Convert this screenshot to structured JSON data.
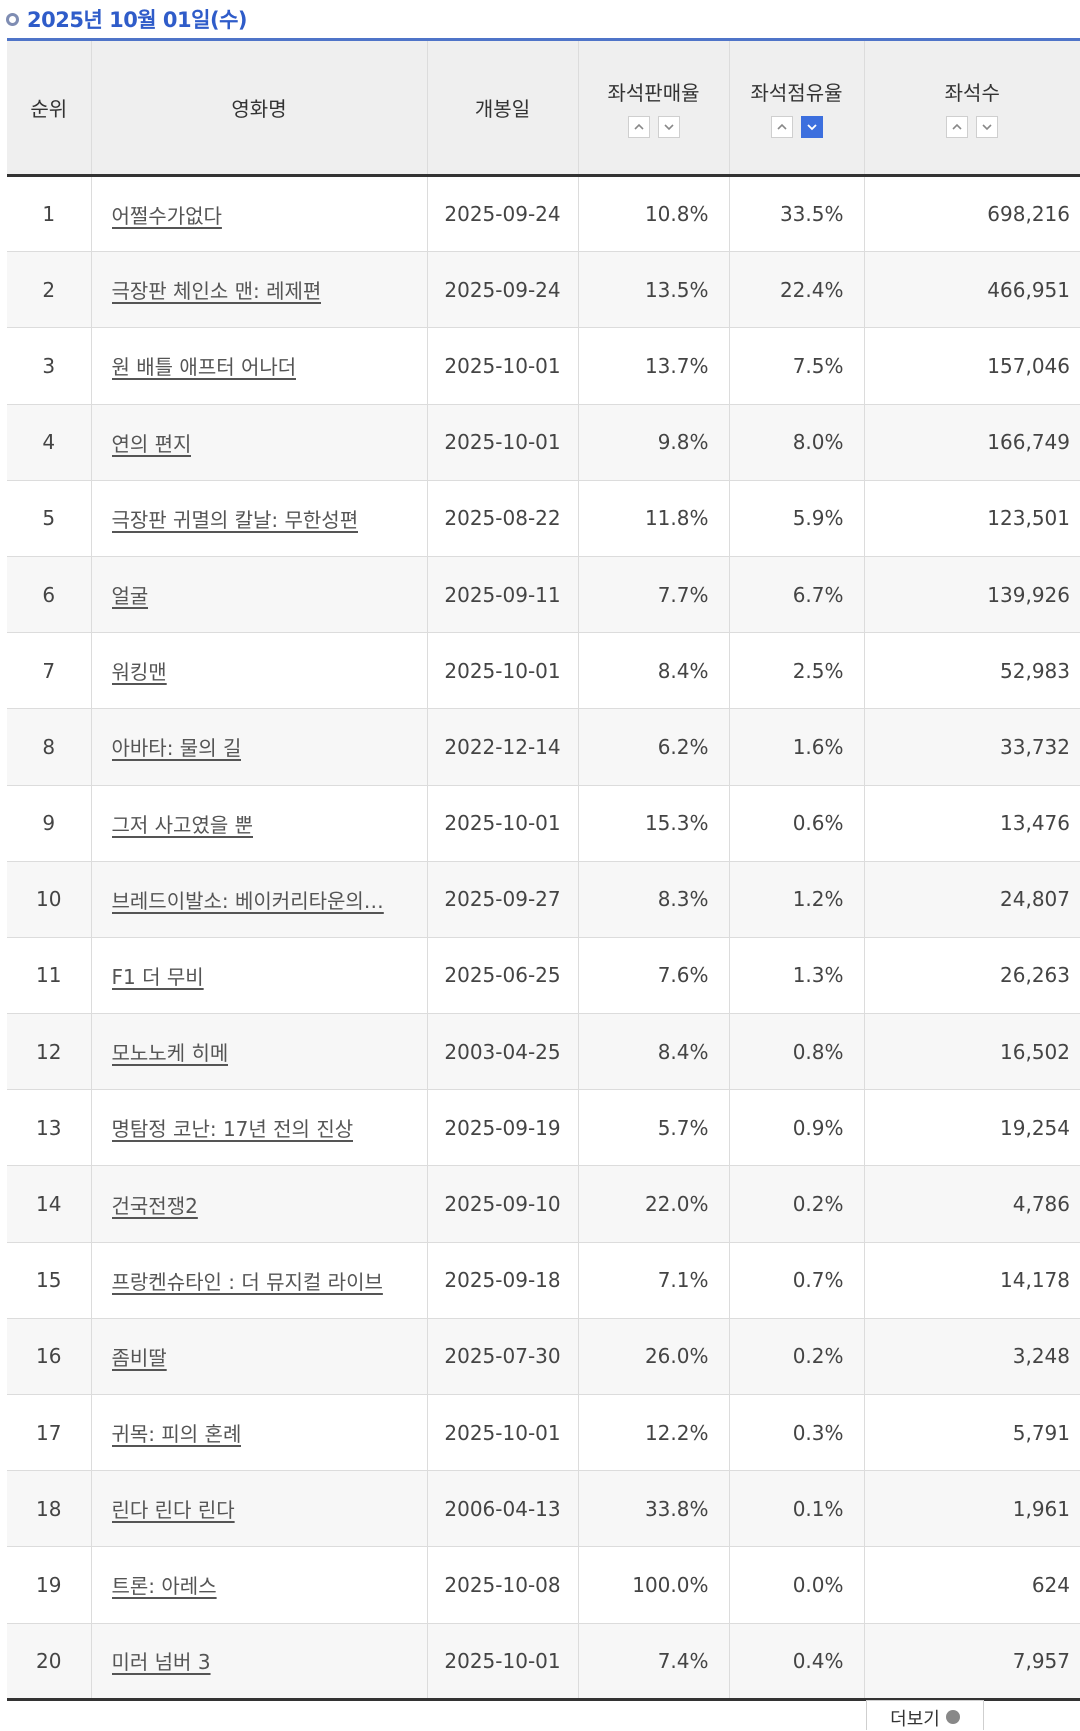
{
  "header": {
    "date": "2025년 10월 01일(수)"
  },
  "columns": {
    "rank": "순위",
    "title": "영화명",
    "release": "개봉일",
    "sales_rate": "좌석판매율",
    "share_rate": "좌석점유율",
    "seats": "좌석수"
  },
  "colors": {
    "accent": "#2f5cc9",
    "active_sort": "#3c6fde"
  },
  "rows": [
    {
      "rank": "1",
      "title": "어쩔수가없다",
      "release": "2025-09-24",
      "sales_rate": "10.8%",
      "share_rate": "33.5%",
      "seats": "698,216"
    },
    {
      "rank": "2",
      "title": "극장판 체인소 맨: 레제편",
      "release": "2025-09-24",
      "sales_rate": "13.5%",
      "share_rate": "22.4%",
      "seats": "466,951"
    },
    {
      "rank": "3",
      "title": "원 배틀 애프터 어나더",
      "release": "2025-10-01",
      "sales_rate": "13.7%",
      "share_rate": "7.5%",
      "seats": "157,046"
    },
    {
      "rank": "4",
      "title": "연의 편지",
      "release": "2025-10-01",
      "sales_rate": "9.8%",
      "share_rate": "8.0%",
      "seats": "166,749"
    },
    {
      "rank": "5",
      "title": "극장판 귀멸의 칼날: 무한성편",
      "release": "2025-08-22",
      "sales_rate": "11.8%",
      "share_rate": "5.9%",
      "seats": "123,501"
    },
    {
      "rank": "6",
      "title": "얼굴",
      "release": "2025-09-11",
      "sales_rate": "7.7%",
      "share_rate": "6.7%",
      "seats": "139,926"
    },
    {
      "rank": "7",
      "title": "워킹맨",
      "release": "2025-10-01",
      "sales_rate": "8.4%",
      "share_rate": "2.5%",
      "seats": "52,983"
    },
    {
      "rank": "8",
      "title": "아바타: 물의 길",
      "release": "2022-12-14",
      "sales_rate": "6.2%",
      "share_rate": "1.6%",
      "seats": "33,732"
    },
    {
      "rank": "9",
      "title": "그저 사고였을 뿐",
      "release": "2025-10-01",
      "sales_rate": "15.3%",
      "share_rate": "0.6%",
      "seats": "13,476"
    },
    {
      "rank": "10",
      "title": "브레드이발소: 베이커리타운의…",
      "release": "2025-09-27",
      "sales_rate": "8.3%",
      "share_rate": "1.2%",
      "seats": "24,807"
    },
    {
      "rank": "11",
      "title": "F1 더 무비",
      "release": "2025-06-25",
      "sales_rate": "7.6%",
      "share_rate": "1.3%",
      "seats": "26,263"
    },
    {
      "rank": "12",
      "title": "모노노케 히메",
      "release": "2003-04-25",
      "sales_rate": "8.4%",
      "share_rate": "0.8%",
      "seats": "16,502"
    },
    {
      "rank": "13",
      "title": "명탐정 코난: 17년 전의 진상",
      "release": "2025-09-19",
      "sales_rate": "5.7%",
      "share_rate": "0.9%",
      "seats": "19,254"
    },
    {
      "rank": "14",
      "title": "건국전쟁2",
      "release": "2025-09-10",
      "sales_rate": "22.0%",
      "share_rate": "0.2%",
      "seats": "4,786"
    },
    {
      "rank": "15",
      "title": "프랑켄슈타인 : 더 뮤지컬 라이브",
      "release": "2025-09-18",
      "sales_rate": "7.1%",
      "share_rate": "0.7%",
      "seats": "14,178"
    },
    {
      "rank": "16",
      "title": "좀비딸",
      "release": "2025-07-30",
      "sales_rate": "26.0%",
      "share_rate": "0.2%",
      "seats": "3,248"
    },
    {
      "rank": "17",
      "title": "귀목: 피의 혼례",
      "release": "2025-10-01",
      "sales_rate": "12.2%",
      "share_rate": "0.3%",
      "seats": "5,791"
    },
    {
      "rank": "18",
      "title": "린다 린다 린다",
      "release": "2006-04-13",
      "sales_rate": "33.8%",
      "share_rate": "0.1%",
      "seats": "1,961"
    },
    {
      "rank": "19",
      "title": "트론: 아레스",
      "release": "2025-10-08",
      "sales_rate": "100.0%",
      "share_rate": "0.0%",
      "seats": "624"
    },
    {
      "rank": "20",
      "title": "미러 넘버 3",
      "release": "2025-10-01",
      "sales_rate": "7.4%",
      "share_rate": "0.4%",
      "seats": "7,957"
    }
  ],
  "footer": {
    "more_label": "더보기"
  }
}
